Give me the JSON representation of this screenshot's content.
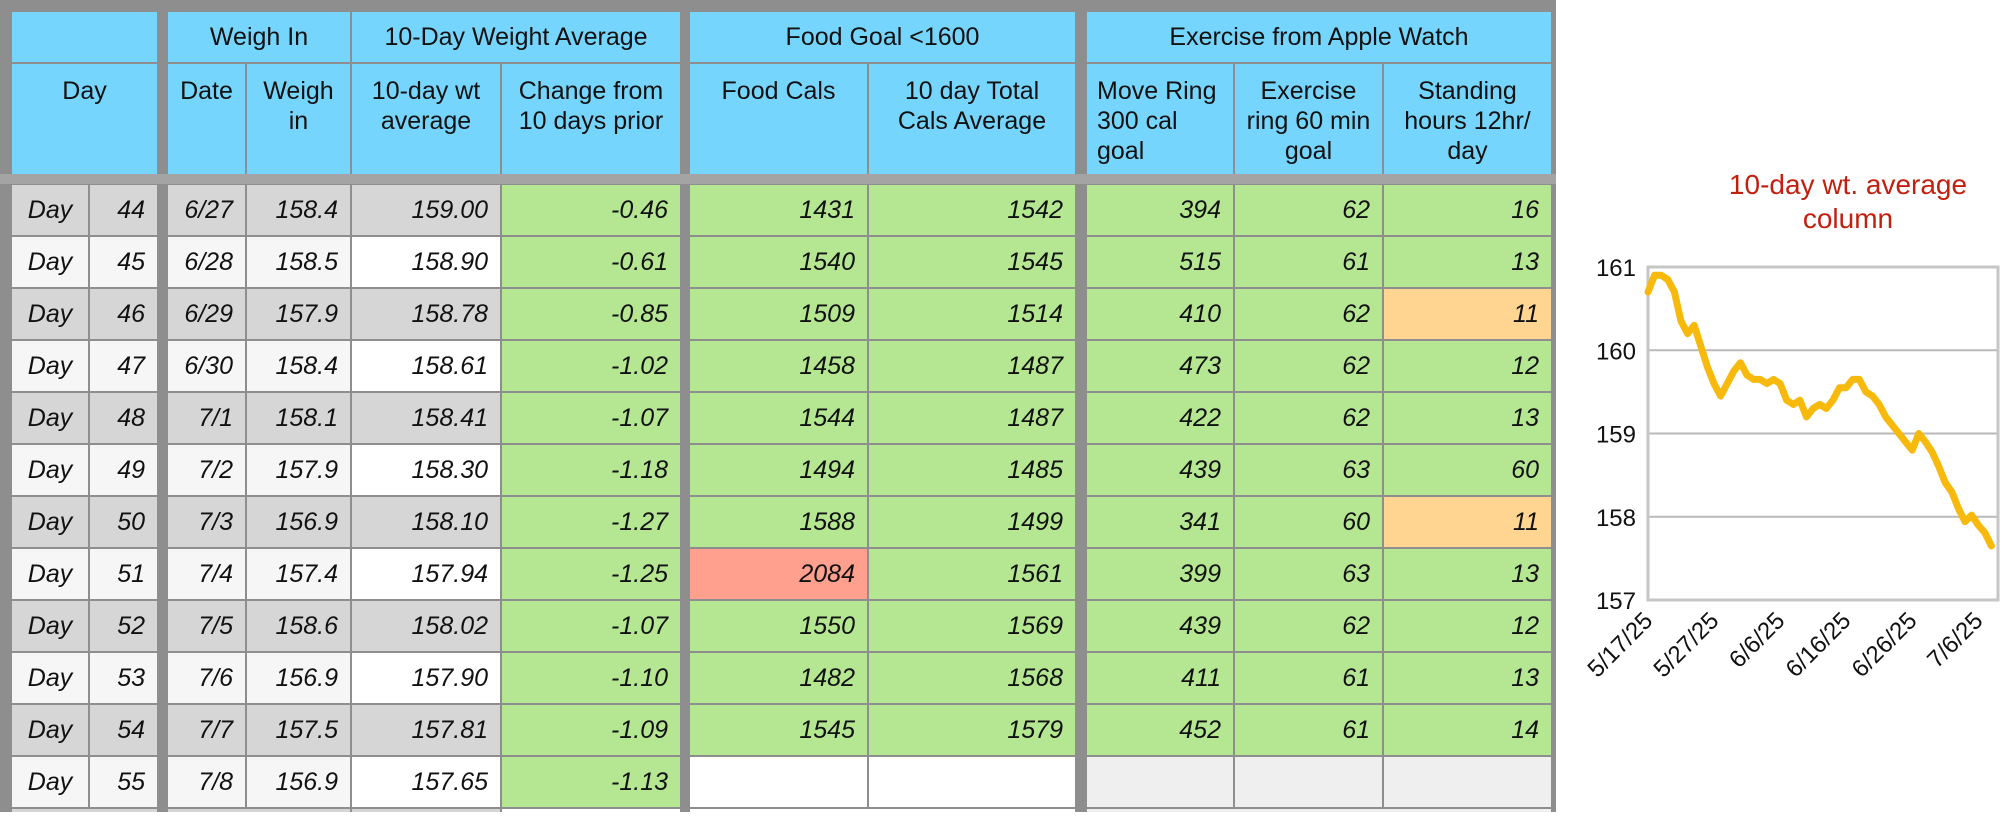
{
  "headers": {
    "group": {
      "weigh_in": "Weigh In",
      "ten_day_avg": "10-Day Weight Average",
      "food_goal": "Food Goal <1600",
      "exercise": "Exercise from Apple Watch"
    },
    "columns": {
      "day": "Day",
      "date": "Date",
      "weigh_in": "Weigh\nin",
      "avg": "10-day wt\naverage",
      "change": "Change from\n10 days prior",
      "food_cals": "Food Cals",
      "total_cals": "10 day Total\nCals Average",
      "move": "Move Ring\n300 cal\ngoal",
      "exercise": "Exercise\nring 60 min\ngoal",
      "standing": "Standing\nhours 12hr/\nday"
    }
  },
  "rows": [
    {
      "label": "Day",
      "day": "44",
      "date": "6/27",
      "weigh": "158.4",
      "avg": "159.00",
      "change": "-0.46",
      "food": "1431",
      "total": "1542",
      "move": "394",
      "exercise": "62",
      "standing": "16"
    },
    {
      "label": "Day",
      "day": "45",
      "date": "6/28",
      "weigh": "158.5",
      "avg": "158.90",
      "change": "-0.61",
      "food": "1540",
      "total": "1545",
      "move": "515",
      "exercise": "61",
      "standing": "13"
    },
    {
      "label": "Day",
      "day": "46",
      "date": "6/29",
      "weigh": "157.9",
      "avg": "158.78",
      "change": "-0.85",
      "food": "1509",
      "total": "1514",
      "move": "410",
      "exercise": "62",
      "standing": "11"
    },
    {
      "label": "Day",
      "day": "47",
      "date": "6/30",
      "weigh": "158.4",
      "avg": "158.61",
      "change": "-1.02",
      "food": "1458",
      "total": "1487",
      "move": "473",
      "exercise": "62",
      "standing": "12"
    },
    {
      "label": "Day",
      "day": "48",
      "date": "7/1",
      "weigh": "158.1",
      "avg": "158.41",
      "change": "-1.07",
      "food": "1544",
      "total": "1487",
      "move": "422",
      "exercise": "62",
      "standing": "13"
    },
    {
      "label": "Day",
      "day": "49",
      "date": "7/2",
      "weigh": "157.9",
      "avg": "158.30",
      "change": "-1.18",
      "food": "1494",
      "total": "1485",
      "move": "439",
      "exercise": "63",
      "standing": "60"
    },
    {
      "label": "Day",
      "day": "50",
      "date": "7/3",
      "weigh": "156.9",
      "avg": "158.10",
      "change": "-1.27",
      "food": "1588",
      "total": "1499",
      "move": "341",
      "exercise": "60",
      "standing": "11"
    },
    {
      "label": "Day",
      "day": "51",
      "date": "7/4",
      "weigh": "157.4",
      "avg": "157.94",
      "change": "-1.25",
      "food": "2084",
      "total": "1561",
      "move": "399",
      "exercise": "63",
      "standing": "13"
    },
    {
      "label": "Day",
      "day": "52",
      "date": "7/5",
      "weigh": "158.6",
      "avg": "158.02",
      "change": "-1.07",
      "food": "1550",
      "total": "1569",
      "move": "439",
      "exercise": "62",
      "standing": "12"
    },
    {
      "label": "Day",
      "day": "53",
      "date": "7/6",
      "weigh": "156.9",
      "avg": "157.90",
      "change": "-1.10",
      "food": "1482",
      "total": "1568",
      "move": "411",
      "exercise": "61",
      "standing": "13"
    },
    {
      "label": "Day",
      "day": "54",
      "date": "7/7",
      "weigh": "157.5",
      "avg": "157.81",
      "change": "-1.09",
      "food": "1545",
      "total": "1579",
      "move": "452",
      "exercise": "61",
      "standing": "14"
    },
    {
      "label": "Day",
      "day": "55",
      "date": "7/8",
      "weigh": "156.9",
      "avg": "157.65",
      "change": "-1.13",
      "food": "",
      "total": "",
      "move": "",
      "exercise": "",
      "standing": ""
    }
  ],
  "colors": {
    "header": "#75d5fc",
    "good": "#b5e692",
    "warning": "#ffd591",
    "over_goal": "#ff9f8e",
    "line": "#f6b90c",
    "chart_title": "#c2200f"
  },
  "chart_data": {
    "type": "line",
    "title": "10-day wt. average\ncolumn",
    "xlabel": "",
    "ylabel": "",
    "ylim": [
      157,
      161
    ],
    "yticks": [
      "157",
      "158",
      "159",
      "160",
      "161"
    ],
    "xticks": [
      "5/17/25",
      "5/27/25",
      "6/6/25",
      "6/16/25",
      "6/26/25",
      "7/6/25"
    ],
    "xlim": [
      "5/17/25",
      "7/9/25"
    ],
    "grid": true,
    "x": [
      "5/17/25",
      "5/18/25",
      "5/19/25",
      "5/20/25",
      "5/21/25",
      "5/22/25",
      "5/23/25",
      "5/24/25",
      "5/25/25",
      "5/26/25",
      "5/27/25",
      "5/28/25",
      "5/29/25",
      "5/30/25",
      "5/31/25",
      "6/1/25",
      "6/2/25",
      "6/3/25",
      "6/4/25",
      "6/5/25",
      "6/6/25",
      "6/7/25",
      "6/8/25",
      "6/9/25",
      "6/10/25",
      "6/11/25",
      "6/12/25",
      "6/13/25",
      "6/14/25",
      "6/15/25",
      "6/16/25",
      "6/17/25",
      "6/18/25",
      "6/19/25",
      "6/20/25",
      "6/21/25",
      "6/22/25",
      "6/23/25",
      "6/24/25",
      "6/25/25",
      "6/26/25",
      "6/27/25",
      "6/28/25",
      "6/29/25",
      "6/30/25",
      "7/1/25",
      "7/2/25",
      "7/3/25",
      "7/4/25",
      "7/5/25",
      "7/6/25",
      "7/7/25",
      "7/8/25"
    ],
    "series": [
      {
        "values": [
          160.7,
          160.9,
          160.9,
          160.85,
          160.7,
          160.35,
          160.2,
          160.3,
          160.05,
          159.8,
          159.6,
          159.45,
          159.6,
          159.75,
          159.85,
          159.7,
          159.65,
          159.65,
          159.6,
          159.65,
          159.6,
          159.4,
          159.35,
          159.4,
          159.2,
          159.3,
          159.35,
          159.3,
          159.4,
          159.55,
          159.55,
          159.65,
          159.65,
          159.5,
          159.45,
          159.35,
          159.2,
          159.1,
          159.0,
          158.9,
          158.8,
          159.0,
          158.9,
          158.78,
          158.61,
          158.41,
          158.3,
          158.1,
          157.94,
          158.02,
          157.9,
          157.81,
          157.65
        ]
      }
    ]
  }
}
